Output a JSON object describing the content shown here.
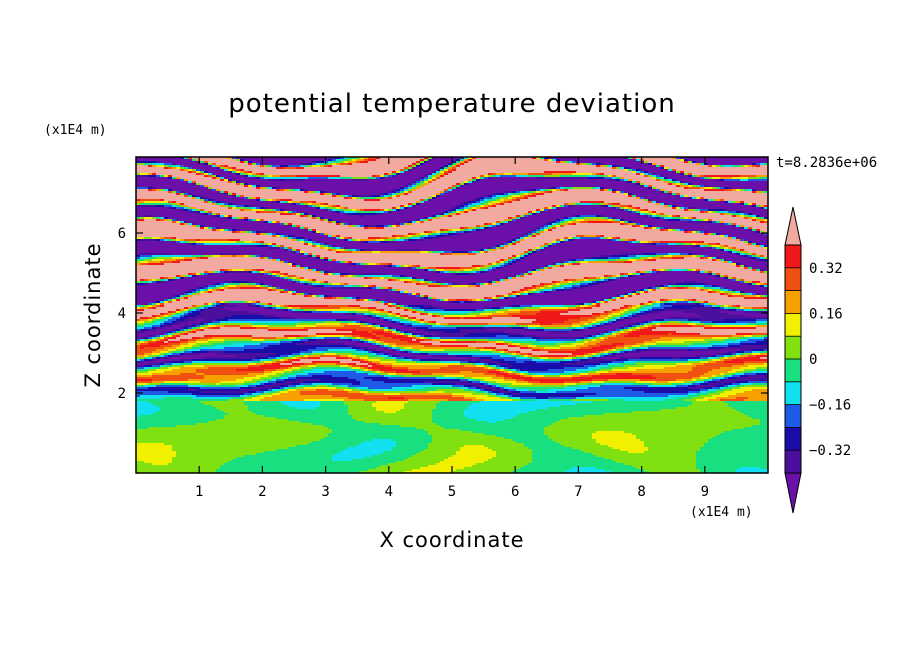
{
  "chart_data": {
    "type": "heatmap",
    "title": "potential temperature deviation",
    "xlabel": "X coordinate",
    "ylabel": "Z coordinate",
    "x_units": "(x1E4 m)",
    "y_units": "(x1E4 m)",
    "time_label": "t=8.2836e+06",
    "xlim": [
      0,
      10
    ],
    "ylim": [
      0,
      7.9
    ],
    "x_ticks": [
      1,
      2,
      3,
      4,
      5,
      6,
      7,
      8,
      9
    ],
    "y_ticks": [
      2,
      4,
      6
    ],
    "colorbar": {
      "levels": [
        -0.4,
        -0.32,
        -0.24,
        -0.16,
        -0.08,
        0,
        0.08,
        0.16,
        0.24,
        0.32,
        0.4
      ],
      "colors": [
        "#4b0f9e",
        "#1a0ca8",
        "#1e5ae6",
        "#10e0f0",
        "#18e080",
        "#80e010",
        "#f0f000",
        "#f8a000",
        "#f05010",
        "#f01818"
      ],
      "under_color": "#6a0fa8",
      "over_color": "#f2a9a0",
      "labels": [
        "0.32",
        "0.16",
        "0",
        "−0.16",
        "−0.32"
      ],
      "label_values": [
        0.32,
        0.16,
        0,
        -0.16,
        -0.32
      ]
    },
    "regions": [
      {
        "z_range": [
          0,
          1.8
        ],
        "description": "turbulent mix of green (-0.08 to 0.08)"
      },
      {
        "z_range": [
          1.8,
          4.2
        ],
        "description": "thin wavy bands spanning full colour range"
      },
      {
        "z_range": [
          4.2,
          7.9
        ],
        "description": "alternating pink (>0.4) and purple (<-0.4) layers"
      }
    ]
  }
}
